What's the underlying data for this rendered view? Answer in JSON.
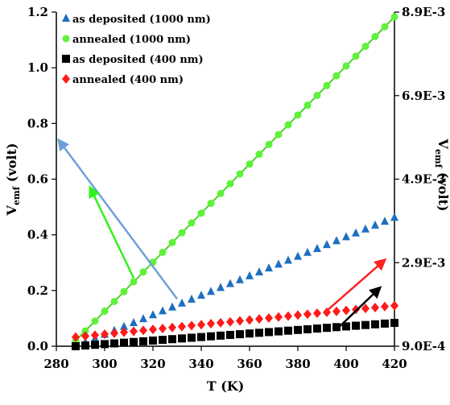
{
  "chart_data": {
    "type": "scatter",
    "title": "",
    "xlabel": "T (K)",
    "ylabel_left": "V",
    "ylabel_left_sub": "emf",
    "ylabel_left_unit": " (volt)",
    "ylabel_right": "V",
    "ylabel_right_sub": "emf",
    "ylabel_right_unit": " (volt)",
    "xlim": [
      280,
      420
    ],
    "ylim_left": [
      0,
      1.2
    ],
    "ylim_right": [
      0.0009,
      0.0089
    ],
    "x_ticks": [
      280,
      300,
      320,
      340,
      360,
      380,
      400,
      420
    ],
    "x_tick_labels": [
      "280",
      "300",
      "320",
      "340",
      "360",
      "380",
      "400",
      "420"
    ],
    "y_left_ticks": [
      0,
      0.2,
      0.4,
      0.6,
      0.8,
      1.0,
      1.2
    ],
    "y_left_tick_labels": [
      "0.0",
      "0.2",
      "0.4",
      "0.6",
      "0.8",
      "1.0",
      "1.2"
    ],
    "y_right_ticks": [
      0.0009,
      0.0029,
      0.0049,
      0.0069,
      0.0089
    ],
    "y_right_tick_labels": [
      "9.0E-4",
      "2.9E-3",
      "4.9E-3",
      "6.9E-3",
      "8.9E-3"
    ],
    "grid": false,
    "legend_position": "top-left",
    "series": [
      {
        "name": "as deposited (1000 nm)",
        "marker": "triangle",
        "color": "#1f6fbf",
        "axis": "left",
        "x_start": 288,
        "x_end": 418,
        "x_step": 4,
        "y_start": 0.0,
        "y_end": 0.455,
        "fit": false
      },
      {
        "name": "annealed (1000 nm)",
        "marker": "circle",
        "color": "#5ef23a",
        "axis": "left",
        "x_start": 288,
        "x_end": 418,
        "x_step": 4,
        "y_start": 0.02,
        "y_end": 1.165,
        "fit": true,
        "fit_color": "#4fd02c"
      },
      {
        "name": "as deposited (400 nm)",
        "marker": "square",
        "color": "#000000",
        "axis": "right",
        "x_start": 288,
        "x_end": 418,
        "x_step": 4,
        "y_start": 0.0009,
        "y_end": 0.00145,
        "fit": false
      },
      {
        "name": "annealed (400 nm)",
        "marker": "diamond",
        "color": "#ff1a1a",
        "axis": "right",
        "x_start": 288,
        "x_end": 418,
        "x_step": 4,
        "y_start": 0.00112,
        "y_end": 0.00186,
        "fit": false
      }
    ],
    "arrows": [
      {
        "color": "#6fa0d8",
        "x1": 330,
        "y1": 0.17,
        "x2": 281,
        "y2": 0.74
      },
      {
        "color": "#2ef21a",
        "x1": 312,
        "y1": 0.245,
        "x2": 294,
        "y2": 0.57
      },
      {
        "color": "#ff2020",
        "x1": 391,
        "y1": 0.12,
        "x2": 416,
        "y2": 0.31
      },
      {
        "color": "#000000",
        "x1": 396,
        "y1": 0.06,
        "x2": 414,
        "y2": 0.21
      }
    ]
  }
}
